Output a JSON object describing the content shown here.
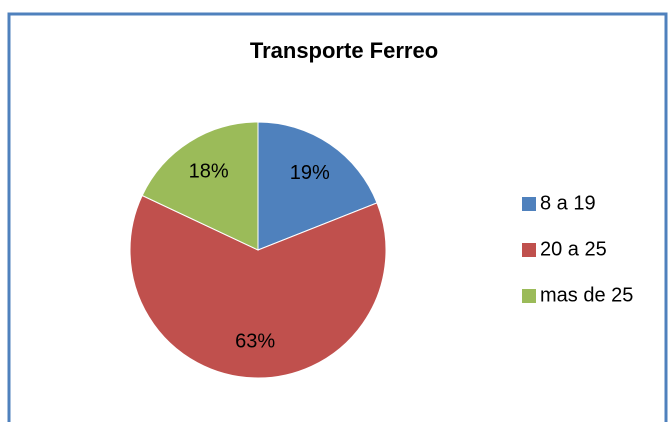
{
  "chart_data": {
    "type": "pie",
    "title": "Transporte Ferreo",
    "categories": [
      "8 a 19",
      "20 a 25",
      "mas de 25"
    ],
    "values": [
      19,
      63,
      18
    ],
    "value_labels": [
      "19%",
      "63%",
      "18%"
    ],
    "colors": [
      "#4f81bd",
      "#c0504d",
      "#9bbb59"
    ],
    "legend": "right"
  }
}
